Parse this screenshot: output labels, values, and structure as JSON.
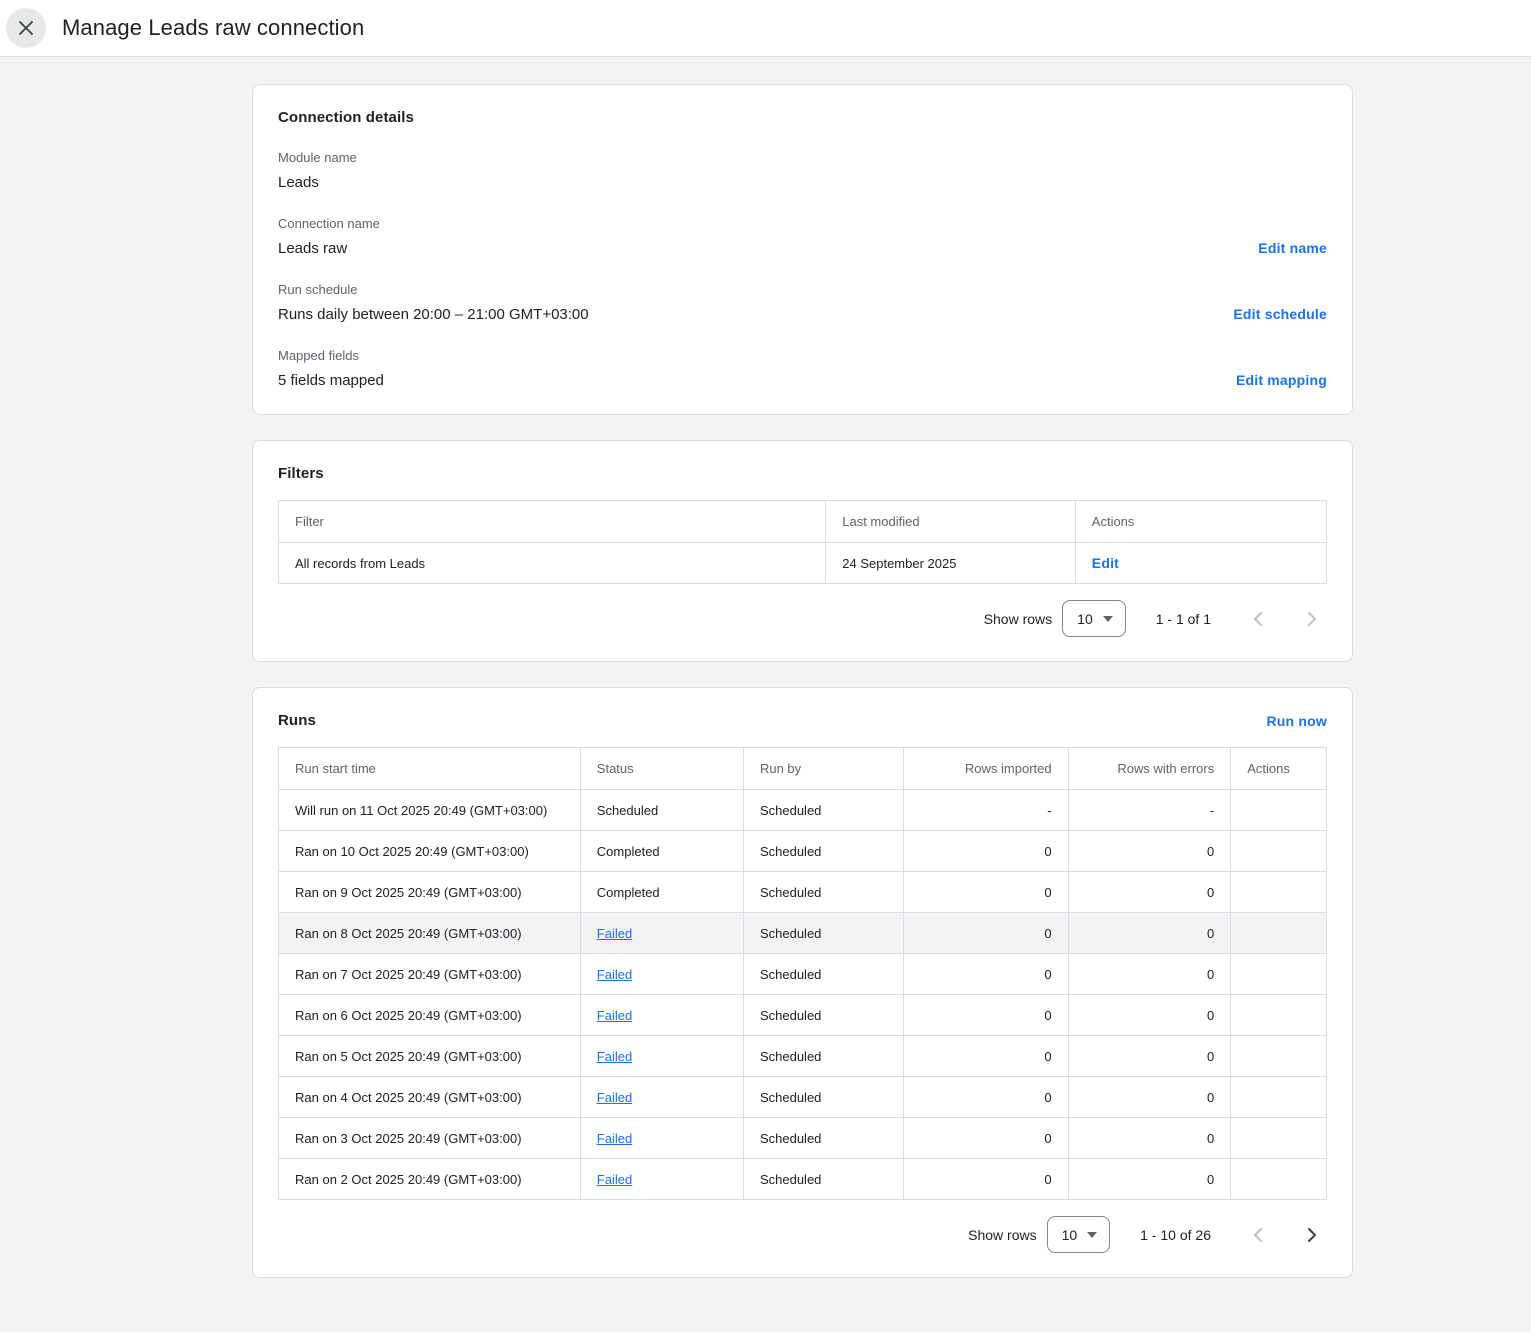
{
  "page": {
    "title": "Manage Leads raw connection"
  },
  "colors": {
    "accent_blue": "#1a73e8",
    "text_primary": "#202124",
    "text_secondary": "#5f6368",
    "border": "#dadce0",
    "page_background": "#f1f3f4",
    "highlight_row": "#f1f3f4"
  },
  "icons": {
    "close": "close-icon",
    "dropdown_caret": "chevron-down-icon",
    "prev": "chevron-left-icon",
    "next": "chevron-right-icon"
  },
  "connection_details": {
    "title": "Connection details",
    "fields": [
      {
        "label": "Module name",
        "value": "Leads",
        "action": ""
      },
      {
        "label": "Connection name",
        "value": "Leads raw",
        "action": "Edit name"
      },
      {
        "label": "Run schedule",
        "value": "Runs daily between 20:00 – 21:00 GMT+03:00",
        "action": "Edit schedule"
      },
      {
        "label": "Mapped fields",
        "value": "5 fields mapped",
        "action": "Edit mapping"
      }
    ]
  },
  "filters": {
    "title": "Filters",
    "columns": [
      "Filter",
      "Last modified",
      "Actions"
    ],
    "rows": [
      {
        "filter": "All records from Leads",
        "last_modified": "24 September 2025",
        "action": "Edit"
      }
    ],
    "pagination": {
      "show_rows_label": "Show rows",
      "page_size": "10",
      "range": "1 - 1 of 1",
      "prev_enabled": false,
      "next_enabled": false
    }
  },
  "runs": {
    "title": "Runs",
    "run_now_label": "Run now",
    "columns": [
      "Run start time",
      "Status",
      "Run by",
      "Rows imported",
      "Rows with errors",
      "Actions"
    ],
    "rows": [
      {
        "start": "Will run on 11 Oct 2025 20:49 (GMT+03:00)",
        "status": "Scheduled",
        "status_is_link": false,
        "run_by": "Scheduled",
        "rows_imported": "-",
        "rows_with_errors": "-",
        "highlighted": false
      },
      {
        "start": "Ran on 10 Oct 2025 20:49 (GMT+03:00)",
        "status": "Completed",
        "status_is_link": false,
        "run_by": "Scheduled",
        "rows_imported": "0",
        "rows_with_errors": "0",
        "highlighted": false
      },
      {
        "start": "Ran on 9 Oct 2025 20:49 (GMT+03:00)",
        "status": "Completed",
        "status_is_link": false,
        "run_by": "Scheduled",
        "rows_imported": "0",
        "rows_with_errors": "0",
        "highlighted": false
      },
      {
        "start": "Ran on 8 Oct 2025 20:49 (GMT+03:00)",
        "status": "Failed",
        "status_is_link": true,
        "run_by": "Scheduled",
        "rows_imported": "0",
        "rows_with_errors": "0",
        "highlighted": true
      },
      {
        "start": "Ran on 7 Oct 2025 20:49 (GMT+03:00)",
        "status": "Failed",
        "status_is_link": true,
        "run_by": "Scheduled",
        "rows_imported": "0",
        "rows_with_errors": "0",
        "highlighted": false
      },
      {
        "start": "Ran on 6 Oct 2025 20:49 (GMT+03:00)",
        "status": "Failed",
        "status_is_link": true,
        "run_by": "Scheduled",
        "rows_imported": "0",
        "rows_with_errors": "0",
        "highlighted": false
      },
      {
        "start": "Ran on 5 Oct 2025 20:49 (GMT+03:00)",
        "status": "Failed",
        "status_is_link": true,
        "run_by": "Scheduled",
        "rows_imported": "0",
        "rows_with_errors": "0",
        "highlighted": false
      },
      {
        "start": "Ran on 4 Oct 2025 20:49 (GMT+03:00)",
        "status": "Failed",
        "status_is_link": true,
        "run_by": "Scheduled",
        "rows_imported": "0",
        "rows_with_errors": "0",
        "highlighted": false
      },
      {
        "start": "Ran on 3 Oct 2025 20:49 (GMT+03:00)",
        "status": "Failed",
        "status_is_link": true,
        "run_by": "Scheduled",
        "rows_imported": "0",
        "rows_with_errors": "0",
        "highlighted": false
      },
      {
        "start": "Ran on 2 Oct 2025 20:49 (GMT+03:00)",
        "status": "Failed",
        "status_is_link": true,
        "run_by": "Scheduled",
        "rows_imported": "0",
        "rows_with_errors": "0",
        "highlighted": false
      }
    ],
    "pagination": {
      "show_rows_label": "Show rows",
      "page_size": "10",
      "range": "1 - 10 of 26",
      "prev_enabled": false,
      "next_enabled": true
    }
  }
}
